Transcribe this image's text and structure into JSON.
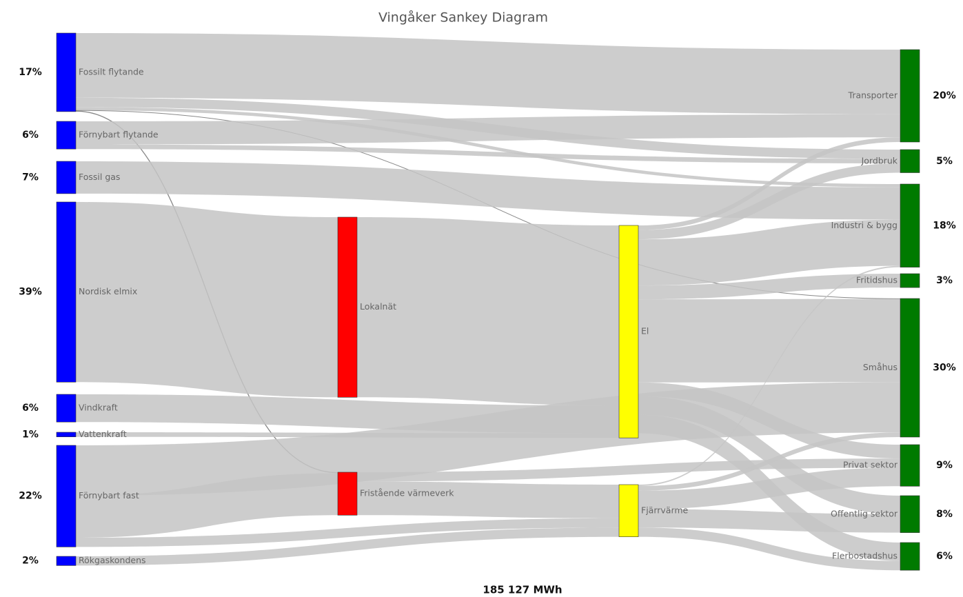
{
  "chart_data": {
    "type": "sankey",
    "title": "Vingåker Sankey Diagram",
    "total_label": "185 127 MWh",
    "nodes": [
      {
        "name": "Fossilt flytande",
        "value": 17,
        "value_label": "17%",
        "color": "#0000ff"
      },
      {
        "name": "Förnybart flytande",
        "value": 6,
        "value_label": "6%",
        "color": "#0000ff"
      },
      {
        "name": "Fossil gas",
        "value": 7,
        "value_label": "7%",
        "color": "#0000ff"
      },
      {
        "name": "Nordisk elmix",
        "value": 39,
        "value_label": "39%",
        "color": "#0000ff"
      },
      {
        "name": "Vindkraft",
        "value": 6,
        "value_label": "6%",
        "color": "#0000ff"
      },
      {
        "name": "Vattenkraft",
        "value": 1,
        "value_label": "1%",
        "color": "#0000ff"
      },
      {
        "name": "Förnybart fast",
        "value": 22,
        "value_label": "22%",
        "color": "#0000ff"
      },
      {
        "name": "Rökgaskondens",
        "value": 2,
        "value_label": "2%",
        "color": "#0000ff"
      },
      {
        "name": "Lokalnät",
        "color": "#ff0000"
      },
      {
        "name": "Fristående värmeverk",
        "color": "#ff0000"
      },
      {
        "name": "El",
        "color": "#ffff00"
      },
      {
        "name": "Fjärrvärme",
        "color": "#ffff00"
      },
      {
        "name": "Transporter",
        "value": 20,
        "value_label": "20%",
        "color": "#007a00"
      },
      {
        "name": "Jordbruk",
        "value": 5,
        "value_label": "5%",
        "color": "#007a00"
      },
      {
        "name": "Industri & bygg",
        "value": 18,
        "value_label": "18%",
        "color": "#007a00"
      },
      {
        "name": "Fritidshus",
        "value": 3,
        "value_label": "3%",
        "color": "#007a00"
      },
      {
        "name": "Småhus",
        "value": 30,
        "value_label": "30%",
        "color": "#007a00"
      },
      {
        "name": "Privat sektor",
        "value": 9,
        "value_label": "9%",
        "color": "#007a00"
      },
      {
        "name": "Offentlig sektor",
        "value": 8,
        "value_label": "8%",
        "color": "#007a00"
      },
      {
        "name": "Flerbostadshus",
        "value": 6,
        "value_label": "6%",
        "color": "#007a00"
      }
    ],
    "link_color": "#c4c4c4",
    "links": [
      {
        "source": 0,
        "target": 12,
        "value": 14
      },
      {
        "source": 0,
        "target": 13,
        "value": 2
      },
      {
        "source": 0,
        "target": 14,
        "value": 0.7
      },
      {
        "source": 0,
        "target": 9,
        "value": 0.2
      },
      {
        "source": 0,
        "target": 16,
        "value": 0.1
      },
      {
        "source": 1,
        "target": 12,
        "value": 5
      },
      {
        "source": 1,
        "target": 13,
        "value": 1
      },
      {
        "source": 2,
        "target": 14,
        "value": 7
      },
      {
        "source": 3,
        "target": 8,
        "value": 39
      },
      {
        "source": 4,
        "target": 10,
        "value": 6
      },
      {
        "source": 5,
        "target": 10,
        "value": 1
      },
      {
        "source": 6,
        "target": 9,
        "value": 9.1
      },
      {
        "source": 6,
        "target": 16,
        "value": 10.9
      },
      {
        "source": 6,
        "target": 11,
        "value": 2
      },
      {
        "source": 7,
        "target": 11,
        "value": 2
      },
      {
        "source": 8,
        "target": 10,
        "value": 39
      },
      {
        "source": 9,
        "target": 11,
        "value": 7.3
      },
      {
        "source": 9,
        "target": 17,
        "value": 2
      },
      {
        "source": 10,
        "target": 12,
        "value": 1
      },
      {
        "source": 10,
        "target": 13,
        "value": 2
      },
      {
        "source": 10,
        "target": 14,
        "value": 10
      },
      {
        "source": 10,
        "target": 15,
        "value": 3
      },
      {
        "source": 10,
        "target": 16,
        "value": 18
      },
      {
        "source": 10,
        "target": 17,
        "value": 3
      },
      {
        "source": 10,
        "target": 18,
        "value": 4
      },
      {
        "source": 10,
        "target": 19,
        "value": 4
      },
      {
        "source": 11,
        "target": 17,
        "value": 4
      },
      {
        "source": 11,
        "target": 18,
        "value": 4
      },
      {
        "source": 11,
        "target": 19,
        "value": 2
      },
      {
        "source": 11,
        "target": 16,
        "value": 1
      },
      {
        "source": 11,
        "target": 14,
        "value": 0.3
      }
    ]
  }
}
